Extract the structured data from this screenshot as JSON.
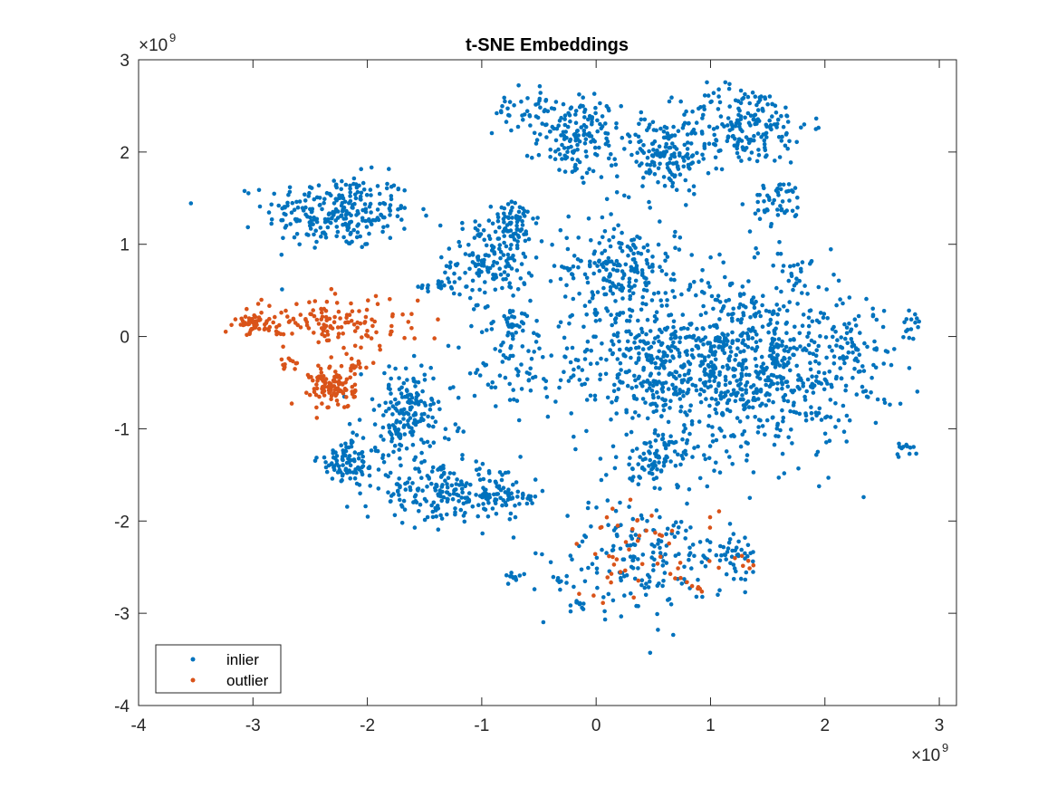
{
  "chart_data": {
    "type": "scatter",
    "title": "t-SNE Embeddings",
    "xlabel": "",
    "ylabel": "",
    "xlim": [
      -4000000000.0,
      3150000000.0
    ],
    "ylim": [
      -4000000000.0,
      3000000000.0
    ],
    "x_ticks": [
      -4000000000.0,
      -3000000000.0,
      -2000000000.0,
      -1000000000.0,
      0,
      1000000000.0,
      2000000000.0,
      3000000000.0
    ],
    "y_ticks": [
      -4000000000.0,
      -3000000000.0,
      -2000000000.0,
      -1000000000.0,
      0,
      1000000000.0,
      2000000000.0,
      3000000000.0
    ],
    "x_tick_labels": [
      "-4",
      "-3",
      "-2",
      "-1",
      "0",
      "1",
      "2",
      "3"
    ],
    "y_tick_labels": [
      "-4",
      "-3",
      "-2",
      "-1",
      "0",
      "1",
      "2",
      "3"
    ],
    "x_exponent_label": "×10^9",
    "y_exponent_label": "×10^9",
    "grid": false,
    "legend_position": "bottom-left",
    "series": [
      {
        "name": "inlier",
        "color": "#0072BD",
        "clusters": [
          {
            "cx": -2250000000.0,
            "cy": 1350000000.0,
            "sx": 320000000.0,
            "sy": 200000000.0,
            "n": 260
          },
          {
            "cx": -1350000000.0,
            "cy": 550000000.0,
            "sx": 100000000.0,
            "sy": 80000000.0,
            "n": 20
          },
          {
            "cx": -900000000.0,
            "cy": 850000000.0,
            "sx": 180000000.0,
            "sy": 220000000.0,
            "n": 170
          },
          {
            "cx": -700000000.0,
            "cy": 1250000000.0,
            "sx": 100000000.0,
            "sy": 100000000.0,
            "n": 50
          },
          {
            "cx": -750000000.0,
            "cy": 150000000.0,
            "sx": 120000000.0,
            "sy": 100000000.0,
            "n": 35
          },
          {
            "cx": -600000000.0,
            "cy": 2450000000.0,
            "sx": 150000000.0,
            "sy": 130000000.0,
            "n": 45
          },
          {
            "cx": -150000000.0,
            "cy": 2150000000.0,
            "sx": 180000000.0,
            "sy": 220000000.0,
            "n": 150
          },
          {
            "cx": 600000000.0,
            "cy": 1950000000.0,
            "sx": 200000000.0,
            "sy": 200000000.0,
            "n": 150
          },
          {
            "cx": 1300000000.0,
            "cy": 2300000000.0,
            "sx": 280000000.0,
            "sy": 220000000.0,
            "n": 200
          },
          {
            "cx": 1600000000.0,
            "cy": 1450000000.0,
            "sx": 120000000.0,
            "sy": 120000000.0,
            "n": 50
          },
          {
            "cx": 200000000.0,
            "cy": 750000000.0,
            "sx": 250000000.0,
            "sy": 250000000.0,
            "n": 200
          },
          {
            "cx": 1300000000.0,
            "cy": -300000000.0,
            "sx": 500000000.0,
            "sy": 500000000.0,
            "n": 800
          },
          {
            "cx": 400000000.0,
            "cy": -300000000.0,
            "sx": 400000000.0,
            "sy": 350000000.0,
            "n": 250
          },
          {
            "cx": 2300000000.0,
            "cy": -200000000.0,
            "sx": 200000000.0,
            "sy": 300000000.0,
            "n": 60
          },
          {
            "cx": 500000000.0,
            "cy": -1350000000.0,
            "sx": 150000000.0,
            "sy": 120000000.0,
            "n": 80
          },
          {
            "cx": -1650000000.0,
            "cy": -850000000.0,
            "sx": 200000000.0,
            "sy": 250000000.0,
            "n": 180
          },
          {
            "cx": -2150000000.0,
            "cy": -1350000000.0,
            "sx": 140000000.0,
            "sy": 120000000.0,
            "n": 90
          },
          {
            "cx": -1300000000.0,
            "cy": -1700000000.0,
            "sx": 350000000.0,
            "sy": 140000000.0,
            "n": 220
          },
          {
            "cx": -750000000.0,
            "cy": -1750000000.0,
            "sx": 120000000.0,
            "sy": 80000000.0,
            "n": 35
          },
          {
            "cx": -700000000.0,
            "cy": -350000000.0,
            "sx": 200000000.0,
            "sy": 200000000.0,
            "n": 60
          },
          {
            "cx": 400000000.0,
            "cy": -2400000000.0,
            "sx": 350000000.0,
            "sy": 300000000.0,
            "n": 180
          },
          {
            "cx": 1200000000.0,
            "cy": -2350000000.0,
            "sx": 100000000.0,
            "sy": 120000000.0,
            "n": 40
          },
          {
            "cx": 2700000000.0,
            "cy": -1230000000.0,
            "sx": 60000000.0,
            "sy": 50000000.0,
            "n": 12
          },
          {
            "cx": 2750000000.0,
            "cy": 100000000.0,
            "sx": 50000000.0,
            "sy": 100000000.0,
            "n": 12
          },
          {
            "cx": -700000000.0,
            "cy": -2600000000.0,
            "sx": 40000000.0,
            "sy": 30000000.0,
            "n": 10
          },
          {
            "cx": -300000000.0,
            "cy": -2650000000.0,
            "sx": 40000000.0,
            "sy": 30000000.0,
            "n": 8
          },
          {
            "cx": -150000000.0,
            "cy": -2900000000.0,
            "sx": 30000000.0,
            "sy": 50000000.0,
            "n": 10
          },
          {
            "cx": 1750000000.0,
            "cy": 750000000.0,
            "sx": 80000000.0,
            "sy": 50000000.0,
            "n": 15
          }
        ]
      },
      {
        "name": "outlier",
        "color": "#D95319",
        "clusters": [
          {
            "cx": -3000000000.0,
            "cy": 150000000.0,
            "sx": 100000000.0,
            "sy": 40000000.0,
            "n": 45
          },
          {
            "cx": -2300000000.0,
            "cy": 150000000.0,
            "sx": 350000000.0,
            "sy": 150000000.0,
            "n": 140
          },
          {
            "cx": -2300000000.0,
            "cy": -550000000.0,
            "sx": 100000000.0,
            "sy": 120000000.0,
            "n": 110
          },
          {
            "cx": -2100000000.0,
            "cy": -300000000.0,
            "sx": 50000000.0,
            "sy": 40000000.0,
            "n": 12
          },
          {
            "cx": -2650000000.0,
            "cy": -350000000.0,
            "sx": 50000000.0,
            "sy": 60000000.0,
            "n": 10
          },
          {
            "cx": 400000000.0,
            "cy": -2350000000.0,
            "sx": 330000000.0,
            "sy": 280000000.0,
            "n": 50
          },
          {
            "cx": 1300000000.0,
            "cy": -2450000000.0,
            "sx": 50000000.0,
            "sy": 40000000.0,
            "n": 6
          },
          {
            "cx": 900000000.0,
            "cy": -2730000000.0,
            "sx": 30000000.0,
            "sy": 30000000.0,
            "n": 5
          }
        ]
      }
    ]
  }
}
